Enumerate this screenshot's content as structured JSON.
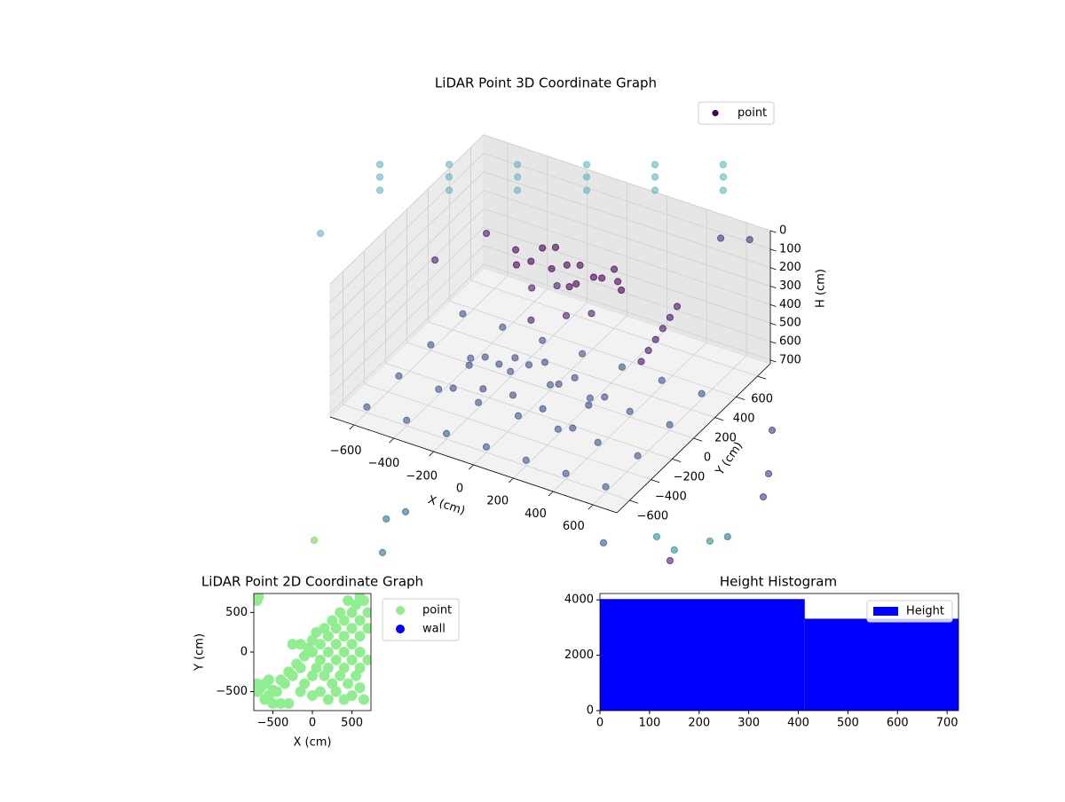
{
  "chart_data": [
    {
      "type": "scatter3d",
      "title": "LiDAR Point 3D Coordinate Graph",
      "xlabel": "X (cm)",
      "ylabel": "Y (cm)",
      "zlabel": "H (cm)",
      "xlim": [
        -720,
        720
      ],
      "ylim": [
        -720,
        720
      ],
      "zlim": [
        720,
        0
      ],
      "xticks": [
        {
          "value": -600,
          "label": "−600"
        },
        {
          "value": -400,
          "label": "−400"
        },
        {
          "value": -200,
          "label": "−200"
        },
        0,
        200,
        400,
        600
      ],
      "yticks": [
        {
          "value": -600,
          "label": "−600"
        },
        {
          "value": -400,
          "label": "−400"
        },
        {
          "value": -200,
          "label": "−200"
        },
        0,
        200,
        400,
        600
      ],
      "zticks": [
        0,
        100,
        200,
        300,
        400,
        500,
        600,
        700
      ],
      "grid": true,
      "legend": "upper right",
      "series": [
        {
          "name": "point",
          "color": "#440154",
          "x": [
            -780,
            -732,
            -681,
            -521,
            -474,
            -422,
            -266,
            -218,
            -167,
            -7,
            40,
            92,
            248,
            296,
            347,
            503,
            551,
            602,
            -300,
            -200,
            -100,
            0,
            100,
            200,
            250,
            -250,
            -150,
            50,
            150,
            -50,
            -220,
            120,
            0,
            -200,
            0,
            -100,
            100,
            -150,
            450,
            430,
            410,
            390,
            370,
            350,
            -300,
            -150,
            0,
            150,
            300,
            -300,
            -150,
            0,
            150,
            300,
            -300,
            -150,
            0,
            150,
            300,
            -600,
            -400,
            -200,
            0,
            200,
            400,
            600,
            -600,
            -400,
            -200,
            0,
            200,
            400,
            600,
            -600,
            -400,
            -200,
            0,
            200,
            400,
            600,
            -600,
            -400,
            -200,
            0,
            200,
            400,
            600,
            -305,
            -1164,
            -118,
            -2,
            -73,
            1177,
            1078,
            961,
            1226,
            1206,
            1137,
            983,
            786,
            -705,
            -544,
            393,
            279,
            1103
          ],
          "y": [
            -141,
            -231,
            -326,
            25,
            -64,
            -160,
            189,
            100,
            4,
            355,
            266,
            170,
            519,
            430,
            334,
            683,
            594,
            498,
            236,
            300,
            200,
            280,
            220,
            260,
            200,
            150,
            330,
            150,
            320,
            250,
            230,
            260,
            180,
            200,
            150,
            250,
            200,
            100,
            350,
            320,
            290,
            260,
            230,
            200,
            -350,
            -350,
            -350,
            -350,
            -350,
            -200,
            -200,
            -200,
            -200,
            -200,
            -50,
            -50,
            -50,
            -50,
            -50,
            -600,
            -600,
            -600,
            -600,
            -600,
            -600,
            -600,
            -300,
            -300,
            -300,
            -300,
            -300,
            -300,
            -300,
            0,
            0,
            0,
            0,
            0,
            0,
            0,
            300,
            300,
            300,
            300,
            300,
            300,
            300,
            -1644,
            18,
            -1318,
            -1569,
            -1220,
            -700,
            -849,
            -796,
            -626,
            -254,
            -75,
            246,
            -968,
            235,
            417,
            1137,
            1078,
            -936
          ],
          "z": [
            -300,
            -300,
            -300,
            -300,
            -300,
            -300,
            -300,
            -300,
            -300,
            -300,
            -300,
            -300,
            -300,
            -300,
            -300,
            -300,
            -300,
            -300,
            200,
            190,
            210,
            200,
            195,
            205,
            200,
            215,
            185,
            210,
            190,
            200,
            230,
            215,
            260,
            350,
            400,
            330,
            380,
            450,
            300,
            350,
            400,
            450,
            500,
            550,
            620,
            570,
            550,
            570,
            620,
            580,
            520,
            470,
            520,
            580,
            620,
            570,
            540,
            570,
            620,
            690,
            690,
            690,
            690,
            690,
            690,
            690,
            690,
            690,
            690,
            690,
            690,
            690,
            690,
            690,
            690,
            690,
            690,
            690,
            690,
            690,
            690,
            690,
            690,
            690,
            690,
            690,
            690,
            720,
            300,
            720,
            720,
            720,
            720,
            720,
            720,
            720,
            720,
            720,
            720,
            720,
            400,
            300,
            400,
            400,
            720
          ],
          "colors": [
            "#5fb6c0",
            "#5fb6c0",
            "#5fb6c0",
            "#5fb6c0",
            "#5fb6c0",
            "#5fb6c0",
            "#5fb6c0",
            "#5fb6c0",
            "#5fb6c0",
            "#5fb6c0",
            "#5fb6c0",
            "#5fb6c0",
            "#5fb6c0",
            "#5fb6c0",
            "#5fb6c0",
            "#5fb6c0",
            "#5fb6c0",
            "#5fb6c0",
            "#440154",
            "#440154",
            "#440154",
            "#440154",
            "#440154",
            "#440154",
            "#440154",
            "#440154",
            "#440154",
            "#440154",
            "#440154",
            "#440154",
            "#440154",
            "#440154",
            "#440154",
            "#481a6c",
            "#481a6c",
            "#481a6c",
            "#481a6c",
            "#481a6c",
            "#471063",
            "#471063",
            "#471063",
            "#471063",
            "#471063",
            "#471063",
            "#3e4a89",
            "#3e4a89",
            "#3e4a89",
            "#3e4a89",
            "#3e4a89",
            "#3e4a89",
            "#3e4a89",
            "#3e4a89",
            "#3e4a89",
            "#3e4a89",
            "#3e4a89",
            "#3e4a89",
            "#3e4a89",
            "#3e4a89",
            "#3e4a89",
            "#3b528b",
            "#3b528b",
            "#3b528b",
            "#3b528b",
            "#3b528b",
            "#3b528b",
            "#3b528b",
            "#3b528b",
            "#3b528b",
            "#3b528b",
            "#3b528b",
            "#3b528b",
            "#3b528b",
            "#3b528b",
            "#3b528b",
            "#3b528b",
            "#3b528b",
            "#3b528b",
            "#3b528b",
            "#3b528b",
            "#3b528b",
            "#3b528b",
            "#3b528b",
            "#3b528b",
            "#3b528b",
            "#3b528b",
            "#3b528b",
            "#3b528b",
            "#7ad151",
            "#5fb6c6",
            "#2c728e",
            "#2c728e",
            "#31688e",
            "#21918c",
            "#21918c",
            "#21918c",
            "#2c728e",
            "#46327e",
            "#46327e",
            "#46327e",
            "#3b528b",
            "#481a6c",
            "#481a6c",
            "#46327e",
            "#46327e",
            "#481a6c"
          ]
        }
      ]
    },
    {
      "type": "scatter",
      "title": "LiDAR Point 2D Coordinate Graph",
      "xlabel": "X (cm)",
      "ylabel": "Y (cm)",
      "xlim": [
        -740,
        740
      ],
      "ylim": [
        -740,
        740
      ],
      "xticks": [
        {
          "value": -500,
          "label": "−500"
        },
        0,
        500
      ],
      "yticks": [
        {
          "value": -500,
          "label": "−500"
        },
        0,
        500
      ],
      "legend": "outside right",
      "series": [
        {
          "name": "point",
          "color": "#90ee90",
          "x": [
            -700,
            -680,
            -700,
            -690,
            -650,
            -600,
            -550,
            -500,
            -450,
            -400,
            -350,
            -300,
            -250,
            -250,
            -200,
            -150,
            -150,
            -100,
            -100,
            -50,
            0,
            0,
            0,
            50,
            50,
            100,
            100,
            100,
            150,
            150,
            200,
            200,
            200,
            200,
            250,
            250,
            300,
            300,
            300,
            300,
            350,
            350,
            400,
            400,
            400,
            400,
            400,
            450,
            450,
            500,
            500,
            500,
            500,
            500,
            550,
            550,
            600,
            600,
            600,
            600,
            600,
            600,
            650,
            650,
            700,
            700,
            700,
            -400,
            -300,
            -550,
            -500,
            -150,
            0,
            -600
          ],
          "y": [
            650,
            700,
            -400,
            -500,
            -450,
            -600,
            -550,
            -480,
            -500,
            -350,
            -400,
            -250,
            -300,
            100,
            -150,
            -200,
            100,
            -50,
            -400,
            50,
            0,
            -300,
            150,
            -200,
            250,
            100,
            -100,
            -500,
            300,
            -300,
            200,
            0,
            -200,
            -600,
            400,
            -400,
            300,
            100,
            -100,
            -500,
            500,
            -300,
            400,
            200,
            0,
            -200,
            -600,
            650,
            -400,
            500,
            300,
            100,
            -100,
            -550,
            600,
            -300,
            700,
            400,
            200,
            0,
            -200,
            -450,
            650,
            -600,
            500,
            300,
            -100,
            -650,
            -650,
            -350,
            -650,
            -500,
            -550,
            -400
          ]
        },
        {
          "name": "wall",
          "color": "#0000ff",
          "x": [],
          "y": []
        }
      ]
    },
    {
      "type": "histogram",
      "title": "Height Histogram",
      "xlim": [
        0,
        723
      ],
      "ylim": [
        0,
        4230
      ],
      "xticks": [
        0,
        100,
        200,
        300,
        400,
        500,
        600,
        700
      ],
      "yticks": [
        0,
        2000,
        4000
      ],
      "legend": "upper right",
      "series": [
        {
          "name": "Height",
          "color": "#0000ff",
          "bins": [
            0,
            413,
            723
          ],
          "counts": [
            4030,
            3320
          ]
        }
      ]
    }
  ]
}
